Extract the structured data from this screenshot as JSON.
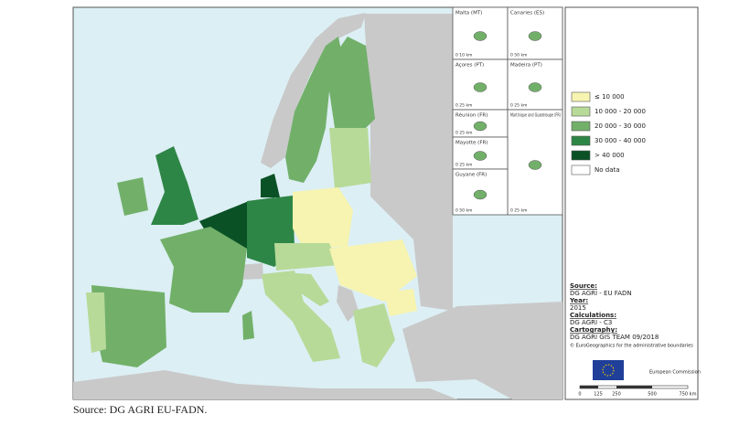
{
  "insets": [
    {
      "label": "Malta (MT)",
      "scale": "0 10 km"
    },
    {
      "label": "Canaries (ES)",
      "scale": "0 50 km"
    },
    {
      "label": "Açores (PT)",
      "scale": "0 25 km"
    },
    {
      "label": "Madeira (PT)",
      "scale": "0 25 km"
    },
    {
      "label": "Réunion (FR)",
      "scale": "0 25 km"
    },
    {
      "label": "Martinique and Guadeloupe (FR)",
      "scale": "0 25 km"
    },
    {
      "label": "Mayotte (FR)",
      "scale": "0 25 km"
    },
    {
      "label": "Guyane (FR)",
      "scale": "0 50 km"
    }
  ],
  "legend": [
    {
      "label": "≤ 10 000",
      "color": "#f6f4b0"
    },
    {
      "label": "10 000 - 20 000",
      "color": "#b7da98"
    },
    {
      "label": "20 000 - 30 000",
      "color": "#72b06a"
    },
    {
      "label": "30 000 - 40 000",
      "color": "#2e8646"
    },
    {
      "label": "> 40 000",
      "color": "#0a5226"
    },
    {
      "label": "No data",
      "color": "#ffffff"
    }
  ],
  "credits": {
    "source_heading": "Source:",
    "source": "DG AGRI - EU FADN",
    "year_heading": "Year:",
    "year": "2015",
    "calculations_heading": "Calculations:",
    "calculations": "DG AGRI - C3",
    "cartography_heading": "Cartography:",
    "cartography": "DG AGRI GIS TEAM 09/2018",
    "copyright": "© EuroGeographics for the administrative boundaries",
    "logo_text": "European Commission"
  },
  "scale_bar": [
    "0",
    "125",
    "250",
    "500",
    "750 km"
  ],
  "caption": "Source: DG AGRI EU-FADN."
}
